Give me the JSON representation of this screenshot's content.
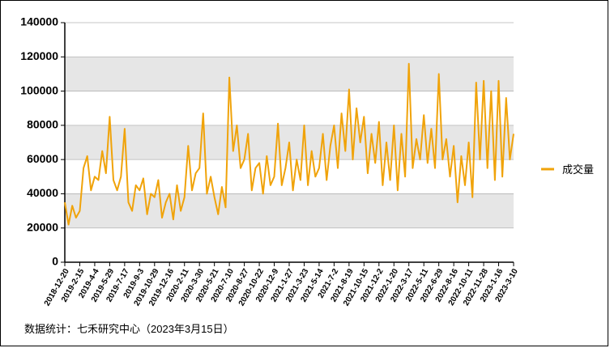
{
  "chart_data": {
    "type": "line",
    "categories": [
      "2018-12-20",
      null,
      null,
      null,
      "2019-2-15",
      null,
      null,
      null,
      "2019-4-4",
      null,
      null,
      null,
      "2019-5-29",
      null,
      null,
      null,
      "2019-7-17",
      null,
      null,
      null,
      "2019-9-3",
      null,
      null,
      null,
      "2019-10-29",
      null,
      null,
      null,
      "2019-12-16",
      null,
      null,
      null,
      "2020-2-11",
      null,
      null,
      null,
      "2020-3-30",
      null,
      null,
      null,
      "2020-5-21",
      null,
      null,
      null,
      "2020-7-10",
      null,
      null,
      null,
      "2020-8-27",
      null,
      null,
      null,
      "2020-10-22",
      null,
      null,
      null,
      "2020-12-9",
      null,
      null,
      null,
      "2021-1-27",
      null,
      null,
      null,
      "2021-3-23",
      null,
      null,
      null,
      "2021-5-14",
      null,
      null,
      null,
      "2021-7-2",
      null,
      null,
      null,
      "2021-8-19",
      null,
      null,
      null,
      "2021-10-15",
      null,
      null,
      null,
      "2021-12-2",
      null,
      null,
      null,
      "2022-1-20",
      null,
      null,
      null,
      "2022-3-17",
      null,
      null,
      null,
      "2022-5-11",
      null,
      null,
      null,
      "2022-6-29",
      null,
      null,
      null,
      "2022-8-16",
      null,
      null,
      null,
      "2022-10-11",
      null,
      null,
      null,
      "2022-11-28",
      null,
      null,
      null,
      "2023-1-16",
      null,
      null,
      null,
      "2023-3-10"
    ],
    "series": [
      {
        "name": "成交量",
        "color": "#f0a30a",
        "values": [
          35000,
          22000,
          33000,
          26000,
          30000,
          55000,
          62000,
          42000,
          50000,
          48000,
          65000,
          52000,
          85000,
          48000,
          42000,
          50000,
          78000,
          35000,
          30000,
          45000,
          42000,
          49000,
          28000,
          40000,
          38000,
          48000,
          26000,
          35000,
          40000,
          25000,
          45000,
          30000,
          38000,
          68000,
          42000,
          52000,
          55000,
          87000,
          40000,
          50000,
          38000,
          28000,
          44000,
          32000,
          108000,
          65000,
          80000,
          55000,
          60000,
          75000,
          42000,
          55000,
          58000,
          40000,
          62000,
          45000,
          50000,
          81000,
          45000,
          55000,
          70000,
          42000,
          60000,
          48000,
          80000,
          45000,
          65000,
          50000,
          55000,
          75000,
          48000,
          68000,
          80000,
          55000,
          87000,
          65000,
          101000,
          60000,
          90000,
          70000,
          85000,
          52000,
          75000,
          58000,
          82000,
          45000,
          70000,
          48000,
          80000,
          42000,
          75000,
          50000,
          116000,
          55000,
          72000,
          60000,
          86000,
          58000,
          78000,
          55000,
          110000,
          60000,
          72000,
          50000,
          68000,
          35000,
          62000,
          45000,
          70000,
          38000,
          105000,
          60000,
          106000,
          55000,
          100000,
          48000,
          106000,
          50000,
          96000,
          60000,
          75000
        ]
      }
    ],
    "ylim": [
      0,
      140000
    ],
    "yticks": [
      0,
      20000,
      40000,
      60000,
      80000,
      100000,
      120000,
      140000
    ],
    "grid": true,
    "legend": "right",
    "footnote": "数据统计：七禾研究中心（2023年3月15日）"
  }
}
